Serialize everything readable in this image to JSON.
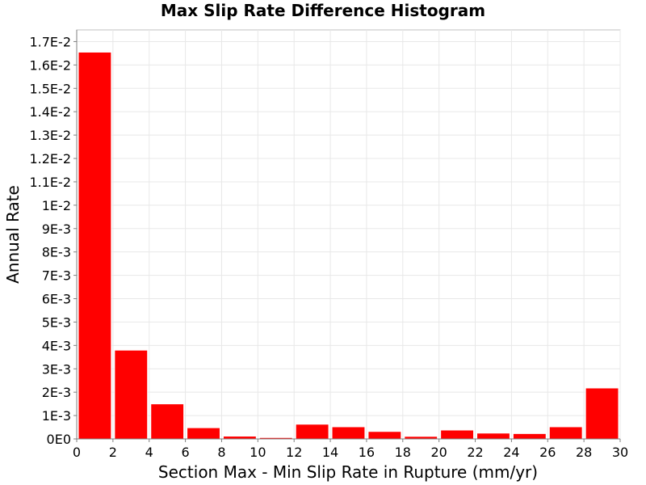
{
  "chart_data": {
    "type": "bar",
    "title": "Max Slip Rate Difference Histogram",
    "xlabel": "Section Max - Min Slip Rate in Rupture (mm/yr)",
    "ylabel": "Annual Rate",
    "xlim": [
      0,
      30
    ],
    "ylim": [
      0,
      0.0175
    ],
    "grid": true,
    "bar_color": "#ff0000",
    "bin_width": 2,
    "x": [
      1,
      3,
      5,
      7,
      9,
      11,
      13,
      15,
      17,
      19,
      21,
      23,
      25,
      27,
      29
    ],
    "values": [
      0.01655,
      0.0038,
      0.0015,
      0.00048,
      0.00012,
      6e-05,
      0.00063,
      0.00052,
      0.00032,
      0.00011,
      0.00038,
      0.00025,
      0.00023,
      0.00052,
      0.00218
    ],
    "x_ticks": [
      {
        "value": 0,
        "label": "0"
      },
      {
        "value": 2,
        "label": "2"
      },
      {
        "value": 4,
        "label": "4"
      },
      {
        "value": 6,
        "label": "6"
      },
      {
        "value": 8,
        "label": "8"
      },
      {
        "value": 10,
        "label": "10"
      },
      {
        "value": 12,
        "label": "12"
      },
      {
        "value": 14,
        "label": "14"
      },
      {
        "value": 16,
        "label": "16"
      },
      {
        "value": 18,
        "label": "18"
      },
      {
        "value": 20,
        "label": "20"
      },
      {
        "value": 22,
        "label": "22"
      },
      {
        "value": 24,
        "label": "24"
      },
      {
        "value": 26,
        "label": "26"
      },
      {
        "value": 28,
        "label": "28"
      },
      {
        "value": 30,
        "label": "30"
      }
    ],
    "y_ticks": [
      {
        "value": 0,
        "label": "0E0"
      },
      {
        "value": 0.001,
        "label": "1E-3"
      },
      {
        "value": 0.002,
        "label": "2E-3"
      },
      {
        "value": 0.003,
        "label": "3E-3"
      },
      {
        "value": 0.004,
        "label": "4E-3"
      },
      {
        "value": 0.005,
        "label": "5E-3"
      },
      {
        "value": 0.006,
        "label": "6E-3"
      },
      {
        "value": 0.007,
        "label": "7E-3"
      },
      {
        "value": 0.008,
        "label": "8E-3"
      },
      {
        "value": 0.009,
        "label": "9E-3"
      },
      {
        "value": 0.01,
        "label": "1E-2"
      },
      {
        "value": 0.011,
        "label": "1.1E-2"
      },
      {
        "value": 0.012,
        "label": "1.2E-2"
      },
      {
        "value": 0.013,
        "label": "1.3E-2"
      },
      {
        "value": 0.014,
        "label": "1.4E-2"
      },
      {
        "value": 0.015,
        "label": "1.5E-2"
      },
      {
        "value": 0.016,
        "label": "1.6E-2"
      },
      {
        "value": 0.017,
        "label": "1.7E-2"
      }
    ]
  }
}
